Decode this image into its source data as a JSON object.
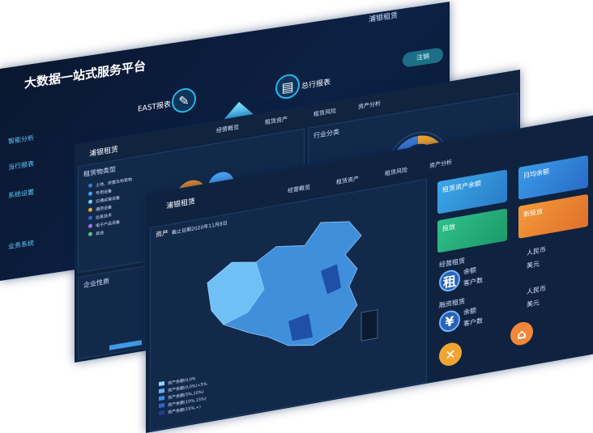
{
  "back": {
    "title": "大数据一站式服务平台",
    "nav": [
      "EAST报表",
      "总行报表"
    ],
    "logout": "注销",
    "sidebar": [
      "智能分析",
      "当行报表",
      "系统设置",
      "业务系统"
    ],
    "logo": "浦银租赁"
  },
  "middle": {
    "logo": "浦银租赁",
    "tabs": [
      "经营概览",
      "租赁资产",
      "租赁风险",
      "资产分析"
    ],
    "left_panel": {
      "title": "租赁物类型",
      "items": [
        "土地、房屋及构筑物",
        "专用设备",
        "交通运输设备",
        "通用设备",
        "信息技术",
        "电子产品设备",
        "其他"
      ]
    },
    "right_panel": {
      "title": "行业分类"
    },
    "bottom_panel": {
      "title": "企业性质"
    }
  },
  "front": {
    "logo": "浦银租赁",
    "tabs": [
      "经营概览",
      "租赁资产",
      "租赁风险",
      "资产分析"
    ],
    "map": {
      "title": "资产",
      "date": "截止日期2020年11月8日",
      "legend": [
        "资产余额(0,0%",
        "资产余额(0,0%)<5%",
        "资产余额(5%,10%)",
        "资产余额(10%,15%)",
        "资产余额(15%,+)"
      ]
    },
    "cards": [
      "租赁资产余额",
      "日均余额",
      "投放",
      "新投放"
    ],
    "sections": [
      {
        "title": "经营租赁",
        "icon": "租",
        "rows": [
          "余额",
          "客户数"
        ],
        "currencies": [
          "人民币",
          "美元"
        ]
      },
      {
        "title": "融资租赁",
        "icon": "¥",
        "rows": [
          "余额",
          "客户数"
        ],
        "currencies": [
          "人民币",
          "美元"
        ]
      }
    ]
  }
}
